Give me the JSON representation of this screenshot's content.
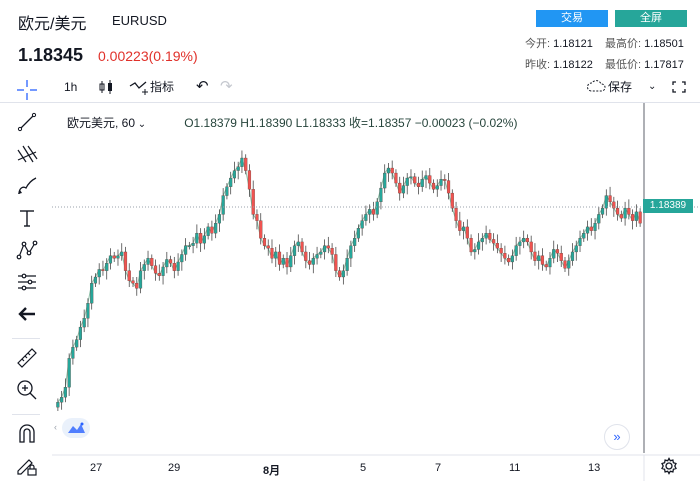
{
  "header": {
    "title": "欧元/美元",
    "symbol": "EURUSD",
    "trade_button": "交易",
    "fullscreen_button": "全屏",
    "price": "1.18345",
    "change": "0.00223(0.19%)",
    "stats": {
      "open_label": "今开:",
      "open_value": "1.18121",
      "high_label": "最高价:",
      "high_value": "1.18501",
      "prev_label": "昨收:",
      "prev_value": "1.18122",
      "low_label": "最低价:",
      "low_value": "1.17817"
    }
  },
  "toolbar": {
    "interval": "1h",
    "indicators": "指标",
    "save": "保存"
  },
  "legend": {
    "symbol": "欧元美元, 60",
    "ohlc": "O1.18379  H1.18390  L1.18333  收=1.18357  −0.00023 (−0.02%)"
  },
  "price_tag": "1.18389",
  "chart_data": {
    "type": "candlestick",
    "title": "欧元美元, 60",
    "x_labels": [
      "27",
      "29",
      "8月",
      "5",
      "7",
      "11",
      "13"
    ],
    "last_price": 1.18389,
    "colors": {
      "up": "#26a69a",
      "down": "#ef5350",
      "line": "#2d8a5e"
    },
    "closes": [
      1.1695,
      1.1699,
      1.1707,
      1.173,
      1.1739,
      1.1745,
      1.1755,
      1.1762,
      1.1774,
      1.179,
      1.1795,
      1.1801,
      1.18,
      1.1806,
      1.1812,
      1.181,
      1.1812,
      1.1815,
      1.18,
      1.1792,
      1.179,
      1.1786,
      1.18,
      1.1805,
      1.181,
      1.1804,
      1.1798,
      1.1796,
      1.1803,
      1.1809,
      1.1806,
      1.18,
      1.1807,
      1.1813,
      1.182,
      1.182,
      1.1822,
      1.183,
      1.1822,
      1.1828,
      1.1835,
      1.183,
      1.1838,
      1.1845,
      1.186,
      1.1867,
      1.1874,
      1.188,
      1.1883,
      1.189,
      1.188,
      1.1865,
      1.1845,
      1.184,
      1.1826,
      1.182,
      1.1818,
      1.181,
      1.1815,
      1.1805,
      1.181,
      1.1803,
      1.1812,
      1.182,
      1.1823,
      1.1815,
      1.1808,
      1.1805,
      1.181,
      1.1813,
      1.1815,
      1.182,
      1.1818,
      1.1813,
      1.18,
      1.1795,
      1.18,
      1.181,
      1.182,
      1.1826,
      1.1834,
      1.184,
      1.1845,
      1.1849,
      1.1845,
      1.1855,
      1.1866,
      1.1878,
      1.1882,
      1.1878,
      1.187,
      1.1862,
      1.1868,
      1.1874,
      1.1875,
      1.187,
      1.1867,
      1.1873,
      1.1876,
      1.187,
      1.1865,
      1.1868,
      1.1873,
      1.1872,
      1.1862,
      1.185,
      1.184,
      1.1832,
      1.1835,
      1.1826,
      1.1815,
      1.1817,
      1.1823,
      1.1826,
      1.183,
      1.1825,
      1.1822,
      1.1818,
      1.1814,
      1.181,
      1.1807,
      1.1812,
      1.182,
      1.1823,
      1.1826,
      1.1823,
      1.1815,
      1.1808,
      1.1812,
      1.1805,
      1.1803,
      1.181,
      1.1817,
      1.1814,
      1.1808,
      1.1802,
      1.1808,
      1.1815,
      1.182,
      1.1826,
      1.183,
      1.1835,
      1.1832,
      1.1838,
      1.1845,
      1.185,
      1.186,
      1.1855,
      1.185,
      1.1845,
      1.1842,
      1.185,
      1.1845,
      1.184,
      1.1847,
      1.1838
    ]
  }
}
